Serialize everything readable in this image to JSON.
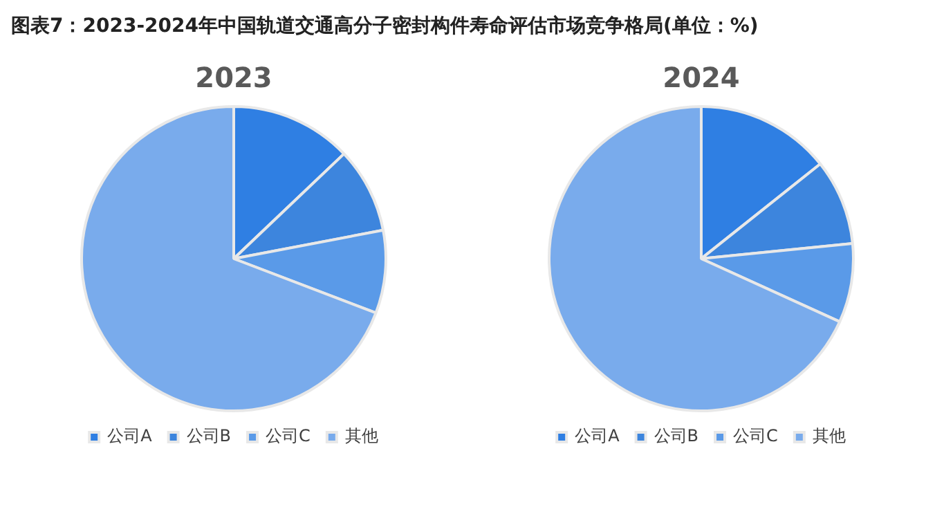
{
  "chart_data": [
    {
      "type": "pie",
      "title": "2023",
      "annotations": [
        "图表7：2023-2024年中国轨道交通高分子密封构件寿命评估市场竞争格局(单位：%)"
      ],
      "categories": [
        "公司A",
        "公司B",
        "公司C",
        "其他"
      ],
      "values": [
        12.9,
        9.1,
        8.8,
        69.2
      ],
      "colors": [
        "#2f7fe3",
        "#3d85dd",
        "#5a9ae8",
        "#79abec"
      ],
      "legend": "bottom"
    },
    {
      "type": "pie",
      "title": "2024",
      "categories": [
        "公司A",
        "公司B",
        "公司C",
        "其他"
      ],
      "values": [
        14.3,
        9.1,
        8.4,
        68.2
      ],
      "colors": [
        "#2f7fe3",
        "#3d85dd",
        "#5a9ae8",
        "#79abec"
      ],
      "legend": "bottom"
    }
  ]
}
